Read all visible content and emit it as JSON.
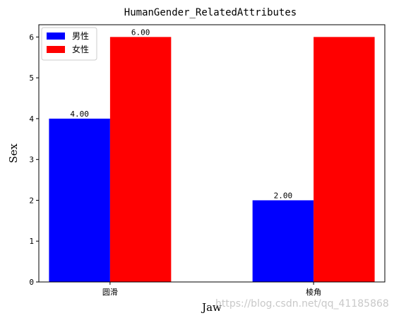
{
  "chart_data": {
    "type": "bar",
    "title": "HumanGender_RelatedAttributes",
    "xlabel": "Jaw",
    "ylabel": "Sex",
    "categories": [
      "圆滑",
      "棱角"
    ],
    "series": [
      {
        "name": "男性",
        "values": [
          4,
          2
        ],
        "color": "#0000ff",
        "labels": [
          "4.00",
          "2.00"
        ]
      },
      {
        "name": "女性",
        "values": [
          6,
          6
        ],
        "color": "#ff0000",
        "labels": [
          "6.00",
          ""
        ]
      }
    ],
    "ylim": [
      0,
      6.3
    ],
    "yticks": [
      0,
      1,
      2,
      3,
      4,
      5,
      6
    ],
    "legend": "top-left",
    "grid": false
  },
  "watermark": "https://blog.csdn.net/qq_41185868"
}
